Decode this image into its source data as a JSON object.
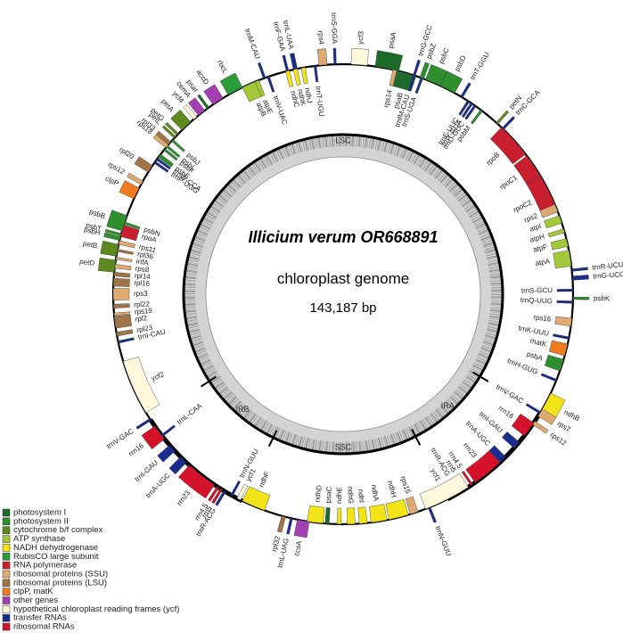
{
  "center": {
    "title": "Illicium verum OR668891",
    "subtitle": "chloroplast genome",
    "size": "143,187 bp"
  },
  "regions": [
    "LSC",
    "IRA",
    "SSC",
    "IRB"
  ],
  "legend": [
    {
      "label": "photosystem I",
      "color": "#1c6b2b"
    },
    {
      "label": "photosystem II",
      "color": "#2f8f2f"
    },
    {
      "label": "cytochrome b/f complex",
      "color": "#5c8a1f"
    },
    {
      "label": "ATP synthase",
      "color": "#a3c93a"
    },
    {
      "label": "NADH dehydrogenase",
      "color": "#f2e418"
    },
    {
      "label": "RubisCO large subunit",
      "color": "#2a9d3a"
    },
    {
      "label": "RNA polymerase",
      "color": "#c81e2e"
    },
    {
      "label": "ribosomal proteins (SSU)",
      "color": "#deaa72"
    },
    {
      "label": "ribosomal proteins (LSU)",
      "color": "#9e7448"
    },
    {
      "label": "clpP, matK",
      "color": "#f27a1e"
    },
    {
      "label": "other genes",
      "color": "#a33fb0"
    },
    {
      "label": "hypothetical chloroplast reading frames (ycf)",
      "color": "#fff8dc"
    },
    {
      "label": "transfer RNAs",
      "color": "#1b2d8c"
    },
    {
      "label": "ribosomal RNAs",
      "color": "#d4132b"
    }
  ],
  "genes": [
    {
      "name": "ycf3",
      "color": "#fff8dc"
    },
    {
      "name": "psaA",
      "color": "#1c6b2b"
    },
    {
      "name": "psaB",
      "color": "#1c6b2b"
    },
    {
      "name": "rps14",
      "color": "#deaa72"
    },
    {
      "name": "trnfM-CAU",
      "color": "#1b2d8c"
    },
    {
      "name": "trnS-UGA",
      "color": "#1b2d8c"
    },
    {
      "name": "trnG-GCC",
      "color": "#1b2d8c"
    },
    {
      "name": "psbZ",
      "color": "#2f8f2f"
    },
    {
      "name": "psbC",
      "color": "#2f8f2f"
    },
    {
      "name": "psbD",
      "color": "#2f8f2f"
    },
    {
      "name": "trnT-GGU",
      "color": "#1b2d8c"
    },
    {
      "name": "psbM",
      "color": "#2f8f2f"
    },
    {
      "name": "trnE-UUC",
      "color": "#1b2d8c"
    },
    {
      "name": "trnY-GUA",
      "color": "#1b2d8c"
    },
    {
      "name": "trnD-GUC",
      "color": "#1b2d8c"
    },
    {
      "name": "petN",
      "color": "#5c8a1f"
    },
    {
      "name": "trnC-GCA",
      "color": "#1b2d8c"
    },
    {
      "name": "rpoB",
      "color": "#c81e2e"
    },
    {
      "name": "rpoC1",
      "color": "#c81e2e"
    },
    {
      "name": "rpoC2",
      "color": "#c81e2e"
    },
    {
      "name": "rps2",
      "color": "#deaa72"
    },
    {
      "name": "atpI",
      "color": "#a3c93a"
    },
    {
      "name": "atpH",
      "color": "#a3c93a"
    },
    {
      "name": "atpF",
      "color": "#a3c93a"
    },
    {
      "name": "atpA",
      "color": "#a3c93a"
    },
    {
      "name": "trnR-UCU",
      "color": "#1b2d8c"
    },
    {
      "name": "trnG-UCC",
      "color": "#1b2d8c"
    },
    {
      "name": "trnS-GCU",
      "color": "#1b2d8c"
    },
    {
      "name": "trnQ-UUG",
      "color": "#1b2d8c"
    },
    {
      "name": "psbK",
      "color": "#2f8f2f"
    },
    {
      "name": "rps16",
      "color": "#deaa72"
    },
    {
      "name": "trnK-UUU",
      "color": "#1b2d8c"
    },
    {
      "name": "matK",
      "color": "#f27a1e"
    },
    {
      "name": "psbA",
      "color": "#2f8f2f"
    },
    {
      "name": "trnH-GUG",
      "color": "#1b2d8c"
    },
    {
      "name": "ndhB",
      "color": "#f2e418"
    },
    {
      "name": "rps7",
      "color": "#deaa72"
    },
    {
      "name": "rps12",
      "color": "#deaa72"
    },
    {
      "name": "trnV-GAC",
      "color": "#1b2d8c"
    },
    {
      "name": "rrn16",
      "color": "#d4132b"
    },
    {
      "name": "trnI-GAU",
      "color": "#1b2d8c"
    },
    {
      "name": "trnA-UGC",
      "color": "#1b2d8c"
    },
    {
      "name": "rrn23",
      "color": "#d4132b"
    },
    {
      "name": "rrn4.5",
      "color": "#d4132b"
    },
    {
      "name": "rrn5",
      "color": "#d4132b"
    },
    {
      "name": "trnR-ACG",
      "color": "#1b2d8c"
    },
    {
      "name": "ycf1",
      "color": "#fff8dc"
    },
    {
      "name": "trnN-GUU",
      "color": "#1b2d8c"
    },
    {
      "name": "rps15",
      "color": "#deaa72"
    },
    {
      "name": "ndhH",
      "color": "#f2e418"
    },
    {
      "name": "ndhA",
      "color": "#f2e418"
    },
    {
      "name": "ndhI",
      "color": "#f2e418"
    },
    {
      "name": "ndhG",
      "color": "#f2e418"
    },
    {
      "name": "ndhE",
      "color": "#f2e418"
    },
    {
      "name": "psaC",
      "color": "#1c6b2b"
    },
    {
      "name": "ndhD",
      "color": "#f2e418"
    },
    {
      "name": "ccsA",
      "color": "#a33fb0"
    },
    {
      "name": "trnL-UAG",
      "color": "#1b2d8c"
    },
    {
      "name": "rpl32",
      "color": "#9e7448"
    },
    {
      "name": "ndhF",
      "color": "#f2e418"
    },
    {
      "name": "ycf1",
      "color": "#fff8dc"
    },
    {
      "name": "trnN-GUU",
      "color": "#1b2d8c"
    },
    {
      "name": "trnR-ACG",
      "color": "#1b2d8c"
    },
    {
      "name": "rrn5",
      "color": "#d4132b"
    },
    {
      "name": "rrn4.5",
      "color": "#d4132b"
    },
    {
      "name": "rrn23",
      "color": "#d4132b"
    },
    {
      "name": "trnA-UGC",
      "color": "#1b2d8c"
    },
    {
      "name": "trnI-GAU",
      "color": "#1b2d8c"
    },
    {
      "name": "rrn16",
      "color": "#d4132b"
    },
    {
      "name": "trnV-GAC",
      "color": "#1b2d8c"
    },
    {
      "name": "trnL-CAA",
      "color": "#1b2d8c"
    },
    {
      "name": "ycf2",
      "color": "#fff8dc"
    },
    {
      "name": "trnI-CAU",
      "color": "#1b2d8c"
    },
    {
      "name": "rpl23",
      "color": "#9e7448"
    },
    {
      "name": "rpl2",
      "color": "#9e7448"
    },
    {
      "name": "rps19",
      "color": "#deaa72"
    },
    {
      "name": "rpl22",
      "color": "#9e7448"
    },
    {
      "name": "rps3",
      "color": "#deaa72"
    },
    {
      "name": "rpl16",
      "color": "#9e7448"
    },
    {
      "name": "rpl14",
      "color": "#9e7448"
    },
    {
      "name": "rps8",
      "color": "#deaa72"
    },
    {
      "name": "infA",
      "color": "#deaa72"
    },
    {
      "name": "rpl36",
      "color": "#9e7448"
    },
    {
      "name": "rps11",
      "color": "#deaa72"
    },
    {
      "name": "rpoA",
      "color": "#c81e2e"
    },
    {
      "name": "petD",
      "color": "#5c8a1f"
    },
    {
      "name": "petB",
      "color": "#5c8a1f"
    },
    {
      "name": "psbH",
      "color": "#2f8f2f"
    },
    {
      "name": "psbT",
      "color": "#2f8f2f"
    },
    {
      "name": "psbN",
      "color": "#2f8f2f"
    },
    {
      "name": "psbB",
      "color": "#2f8f2f"
    },
    {
      "name": "clpP",
      "color": "#f27a1e"
    },
    {
      "name": "rps12",
      "color": "#deaa72"
    },
    {
      "name": "rpl20",
      "color": "#9e7448"
    },
    {
      "name": "trnP-UGG",
      "color": "#1b2d8c"
    },
    {
      "name": "trnW-CCA",
      "color": "#1b2d8c"
    },
    {
      "name": "psbE",
      "color": "#2f8f2f"
    },
    {
      "name": "psbF",
      "color": "#2f8f2f"
    },
    {
      "name": "psbL",
      "color": "#2f8f2f"
    },
    {
      "name": "psbJ",
      "color": "#2f8f2f"
    },
    {
      "name": "rps18",
      "color": "#deaa72"
    },
    {
      "name": "rpl33",
      "color": "#9e7448"
    },
    {
      "name": "petL",
      "color": "#5c8a1f"
    },
    {
      "name": "petG",
      "color": "#5c8a1f"
    },
    {
      "name": "petA",
      "color": "#5c8a1f"
    },
    {
      "name": "ycf4",
      "color": "#fff8dc"
    },
    {
      "name": "cemA",
      "color": "#a33fb0"
    },
    {
      "name": "psaI",
      "color": "#1c6b2b"
    },
    {
      "name": "accD",
      "color": "#a33fb0"
    },
    {
      "name": "rbcL",
      "color": "#2a9d3a"
    },
    {
      "name": "atpB",
      "color": "#a3c93a"
    },
    {
      "name": "atpE",
      "color": "#a3c93a"
    },
    {
      "name": "trnM-CAU",
      "color": "#1b2d8c"
    },
    {
      "name": "trnV-UAC",
      "color": "#1b2d8c"
    },
    {
      "name": "trnF-GAA",
      "color": "#1b2d8c"
    },
    {
      "name": "trnL-UAA",
      "color": "#1b2d8c"
    },
    {
      "name": "ndhC",
      "color": "#f2e418"
    },
    {
      "name": "ndhK",
      "color": "#f2e418"
    },
    {
      "name": "ndhJ",
      "color": "#f2e418"
    },
    {
      "name": "trnT-UGU",
      "color": "#1b2d8c"
    },
    {
      "name": "rps4",
      "color": "#deaa72"
    },
    {
      "name": "trnS-GGA",
      "color": "#1b2d8c"
    }
  ]
}
